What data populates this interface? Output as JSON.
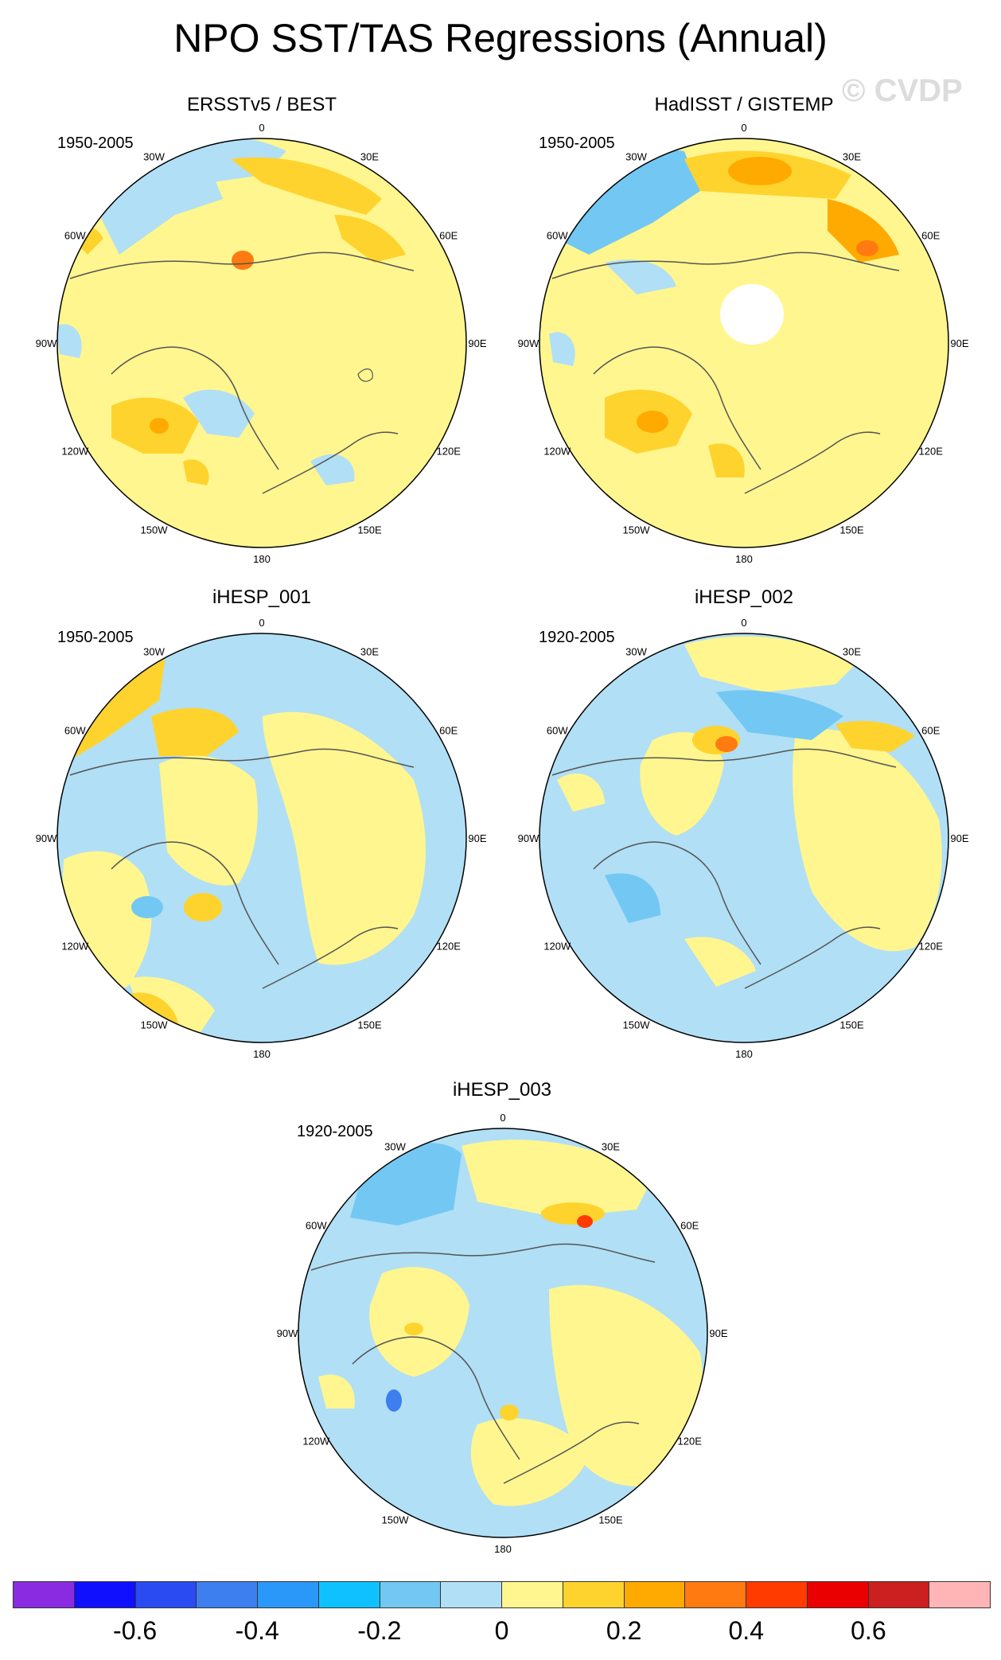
{
  "title": "NPO SST/TAS Regressions (Annual)",
  "watermark": "© CVDP",
  "panels": [
    {
      "title": "ERSSTv5 / BEST",
      "period": "1950-2005"
    },
    {
      "title": "HadISST / GISTEMP",
      "period": "1950-2005"
    },
    {
      "title": "iHESP_001",
      "period": "1950-2005"
    },
    {
      "title": "iHESP_002",
      "period": "1920-2005"
    },
    {
      "title": "iHESP_003",
      "period": "1920-2005"
    }
  ],
  "longitude_labels": {
    "deg180": "180",
    "w150": "150W",
    "e150": "150E",
    "w120": "120W",
    "e120": "120E",
    "w90": "90W",
    "e90": "90E",
    "w60": "60W",
    "e60": "60E",
    "w30": "30W",
    "e30": "30E",
    "deg0": "0"
  },
  "colorbar": {
    "colors": [
      "#8a2be2",
      "#1010ff",
      "#2b4bf2",
      "#3d7fee",
      "#2a98f8",
      "#0fc2ff",
      "#72c8f2",
      "#b1dff5",
      "#fff68f",
      "#ffd32e",
      "#ffaa00",
      "#ff7a10",
      "#ff3b00",
      "#ea0000",
      "#cc1f1f",
      "#ffb5b5"
    ],
    "tick_labels": [
      "-0.6",
      "-0.4",
      "-0.2",
      "0",
      "0.2",
      "0.4",
      "0.6"
    ],
    "levels": [
      -0.6,
      -0.4,
      -0.2,
      0,
      0.2,
      0.4,
      0.6
    ]
  }
}
